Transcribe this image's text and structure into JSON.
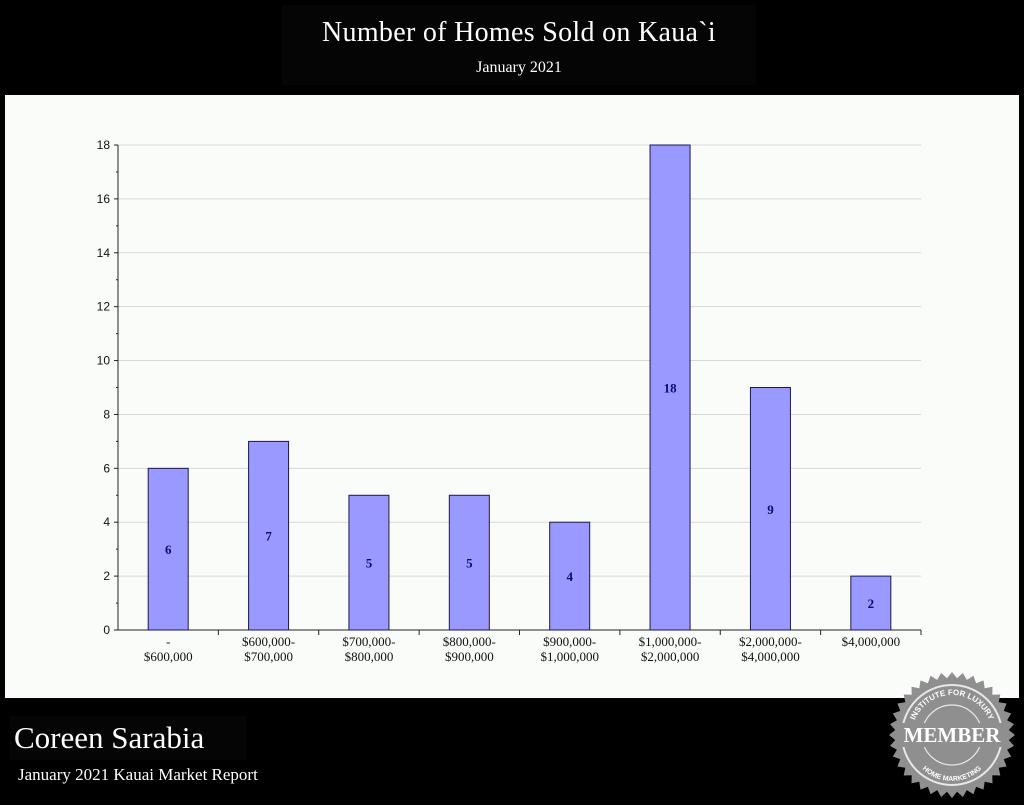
{
  "header": {
    "title": "Number of Homes Sold on Kaua`i",
    "subtitle": "January 2021"
  },
  "footer": {
    "name": "Coreen Sarabia",
    "report": "January 2021 Kauai Market Report"
  },
  "badge": {
    "top_text": "INSTITUTE FOR LUXURY",
    "main_text": "MEMBER",
    "bottom_text": "HOME MARKETING"
  },
  "chart_data": {
    "type": "bar",
    "title": "Number of Homes Sold on Kaua`i",
    "subtitle": "January 2021",
    "categories": [
      [
        "-",
        "$600,000"
      ],
      [
        "$600,000-",
        "$700,000"
      ],
      [
        "$700,000-",
        "$800,000"
      ],
      [
        "$800,000-",
        "$900,000"
      ],
      [
        "$900,000-",
        "$1,000,000"
      ],
      [
        "$1,000,000-",
        "$2,000,000"
      ],
      [
        "$2,000,000-",
        "$4,000,000"
      ],
      [
        "$4,000,000"
      ]
    ],
    "values": [
      6,
      7,
      5,
      5,
      4,
      18,
      9,
      2
    ],
    "data_labels": [
      "6",
      "7",
      "5",
      "5",
      "4",
      "18",
      "9",
      "2"
    ],
    "ylim": [
      0,
      18
    ],
    "yticks": [
      0,
      2,
      4,
      6,
      8,
      10,
      12,
      14,
      16,
      18
    ],
    "xlabel": "",
    "ylabel": "",
    "grid": true,
    "colors": {
      "bar": "#9999ff",
      "bar_edge": "#1a1a4a",
      "label": "#0a0a70",
      "grid": "#d8d8d8"
    }
  }
}
